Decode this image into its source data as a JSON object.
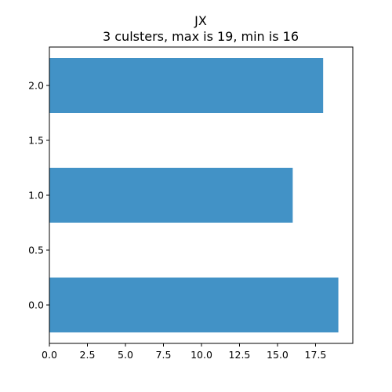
{
  "chart_data": {
    "type": "bar",
    "orientation": "horizontal",
    "title": "JX",
    "subtitle": "3 culsters, max is 19, min is 16",
    "xlabel": "",
    "ylabel": "",
    "categories": [
      0,
      1,
      2
    ],
    "values": [
      19,
      16,
      18
    ],
    "xlim": [
      0,
      19.95
    ],
    "ylim": [
      -0.35,
      2.35
    ],
    "xticks": [
      "0.0",
      "2.5",
      "5.0",
      "7.5",
      "10.0",
      "12.5",
      "15.0",
      "17.5"
    ],
    "xtick_values": [
      0,
      2.5,
      5,
      7.5,
      10,
      12.5,
      15,
      17.5
    ],
    "yticks": [
      "0.0",
      "0.5",
      "1.0",
      "1.5",
      "2.0"
    ],
    "ytick_values": [
      0,
      0.5,
      1,
      1.5,
      2
    ],
    "bar_color": "#4292c6",
    "grid": false,
    "legend": "none"
  }
}
